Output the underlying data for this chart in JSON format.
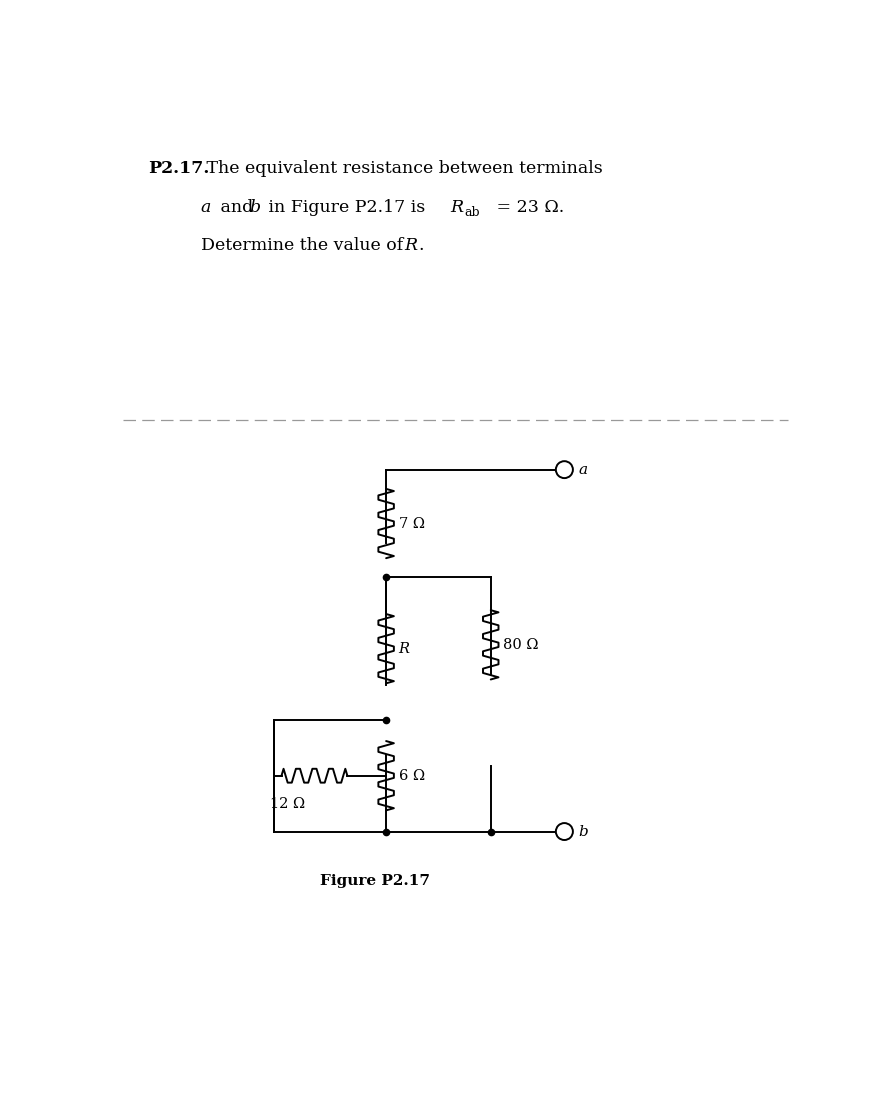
{
  "title_bold": "P2.17.",
  "title_text": " The equivalent resistance between terminals",
  "title_line2_a": "a",
  "title_line2_mid": " and ",
  "title_line2_b": "b",
  "title_line2_rest": " in Figure P2.17 is ",
  "title_line2_R": "R",
  "title_line2_sub": "ab",
  "title_line2_end": " = 23 Ω.",
  "title_line3": "Determine the value of ",
  "title_line3_R": "R",
  "title_line3_end": ".",
  "figure_label": "Figure P2.17",
  "res_7": "7 Ω",
  "res_R": "R",
  "res_6": "6 Ω",
  "res_12": "12 Ω",
  "res_80": "80 Ω",
  "terminal_a": "a",
  "terminal_b": "b",
  "bg_color": "#ffffff",
  "line_color": "#000000",
  "fig_width": 8.88,
  "fig_height": 11.16,
  "dpi": 100
}
